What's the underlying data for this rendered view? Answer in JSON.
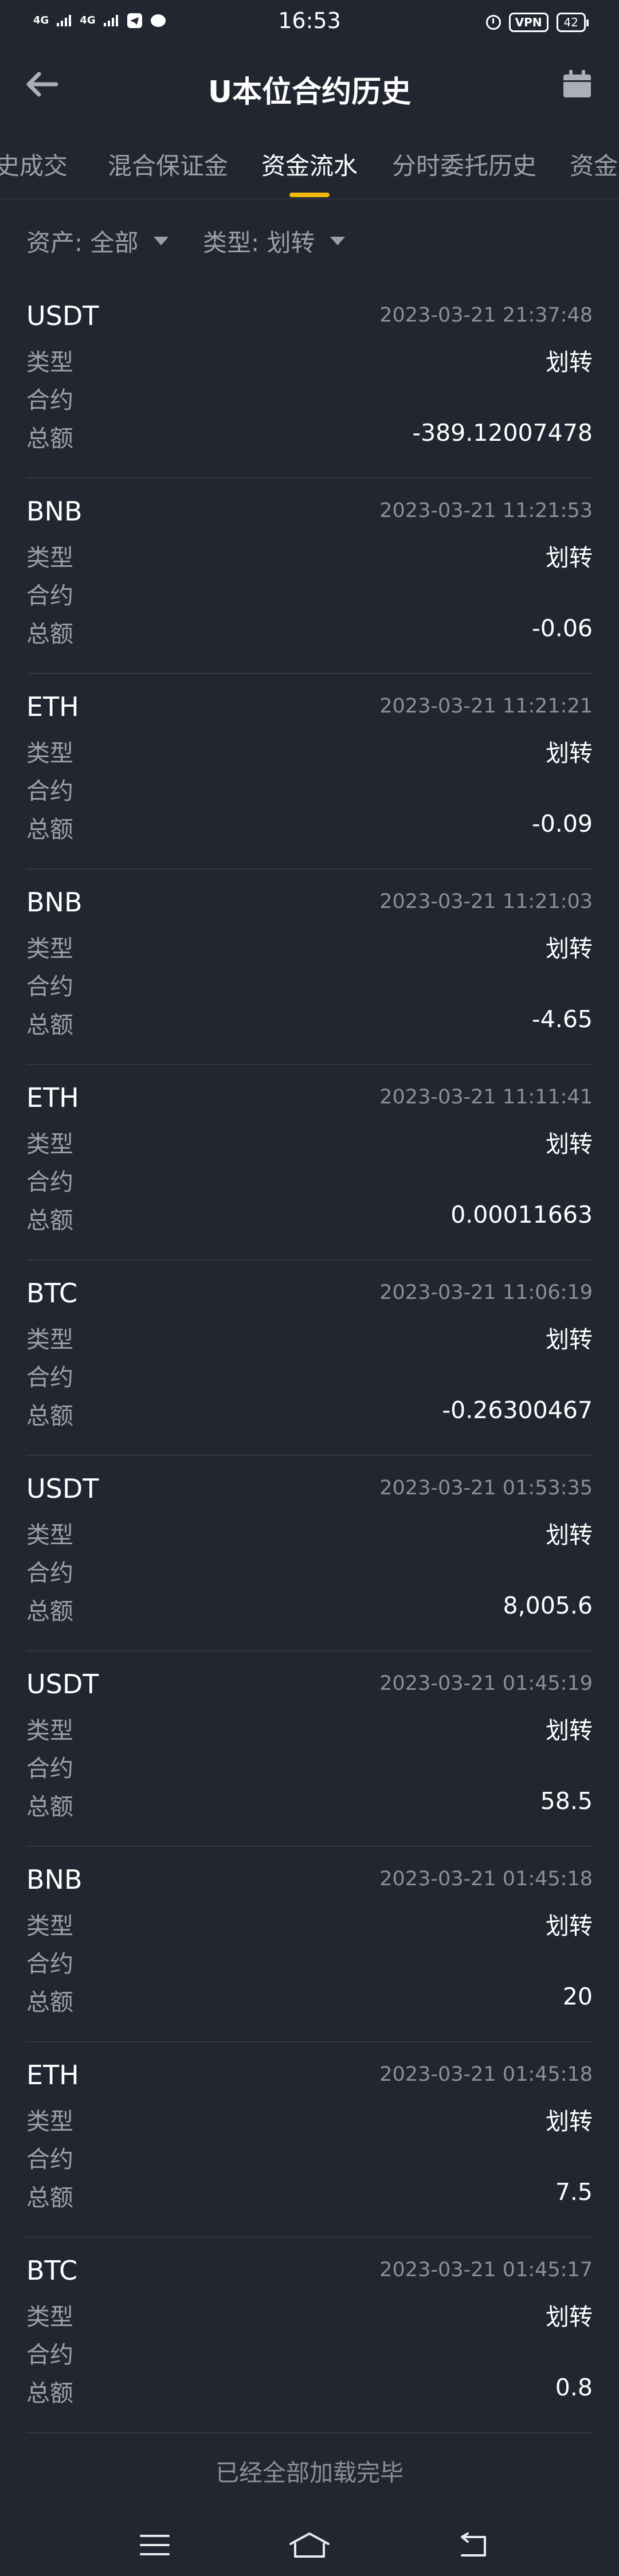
{
  "status_bar": {
    "time": "16:53",
    "signal1": "4G",
    "signal2": "4G",
    "vpn": "VPN",
    "battery": "42"
  },
  "header": {
    "title": "U本位合约历史",
    "back_icon": "arrow-left-icon",
    "calendar_icon": "calendar-icon"
  },
  "tabs": [
    {
      "label": "史成交"
    },
    {
      "label": "混合保证金"
    },
    {
      "label": "资金流水"
    },
    {
      "label": "分时委托历史"
    },
    {
      "label": "资金"
    }
  ],
  "active_tab": "资金流水",
  "filters": {
    "asset": "资产: 全部",
    "type": "类型: 划转"
  },
  "labels": {
    "type": "类型",
    "contract": "合约",
    "total": "总额"
  },
  "records": [
    {
      "asset": "USDT",
      "time": "2023-03-21 21:37:48",
      "type": "划转",
      "contract": "",
      "total": "-389.12007478"
    },
    {
      "asset": "BNB",
      "time": "2023-03-21 11:21:53",
      "type": "划转",
      "contract": "",
      "total": "-0.06"
    },
    {
      "asset": "ETH",
      "time": "2023-03-21 11:21:21",
      "type": "划转",
      "contract": "",
      "total": "-0.09"
    },
    {
      "asset": "BNB",
      "time": "2023-03-21 11:21:03",
      "type": "划转",
      "contract": "",
      "total": "-4.65"
    },
    {
      "asset": "ETH",
      "time": "2023-03-21 11:11:41",
      "type": "划转",
      "contract": "",
      "total": "0.00011663"
    },
    {
      "asset": "BTC",
      "time": "2023-03-21 11:06:19",
      "type": "划转",
      "contract": "",
      "total": "-0.26300467"
    },
    {
      "asset": "USDT",
      "time": "2023-03-21 01:53:35",
      "type": "划转",
      "contract": "",
      "total": "8,005.6"
    },
    {
      "asset": "USDT",
      "time": "2023-03-21 01:45:19",
      "type": "划转",
      "contract": "",
      "total": "58.5"
    },
    {
      "asset": "BNB",
      "time": "2023-03-21 01:45:18",
      "type": "划转",
      "contract": "",
      "total": "20"
    },
    {
      "asset": "ETH",
      "time": "2023-03-21 01:45:18",
      "type": "划转",
      "contract": "",
      "total": "7.5"
    },
    {
      "asset": "BTC",
      "time": "2023-03-21 01:45:17",
      "type": "划转",
      "contract": "",
      "total": "0.8"
    }
  ],
  "footer_text": "已经全部加载完毕",
  "colors": {
    "background": "#222630",
    "accent": "#f0b90b",
    "muted_text": "#9aa0aa",
    "primary_text": "#ffffff"
  }
}
